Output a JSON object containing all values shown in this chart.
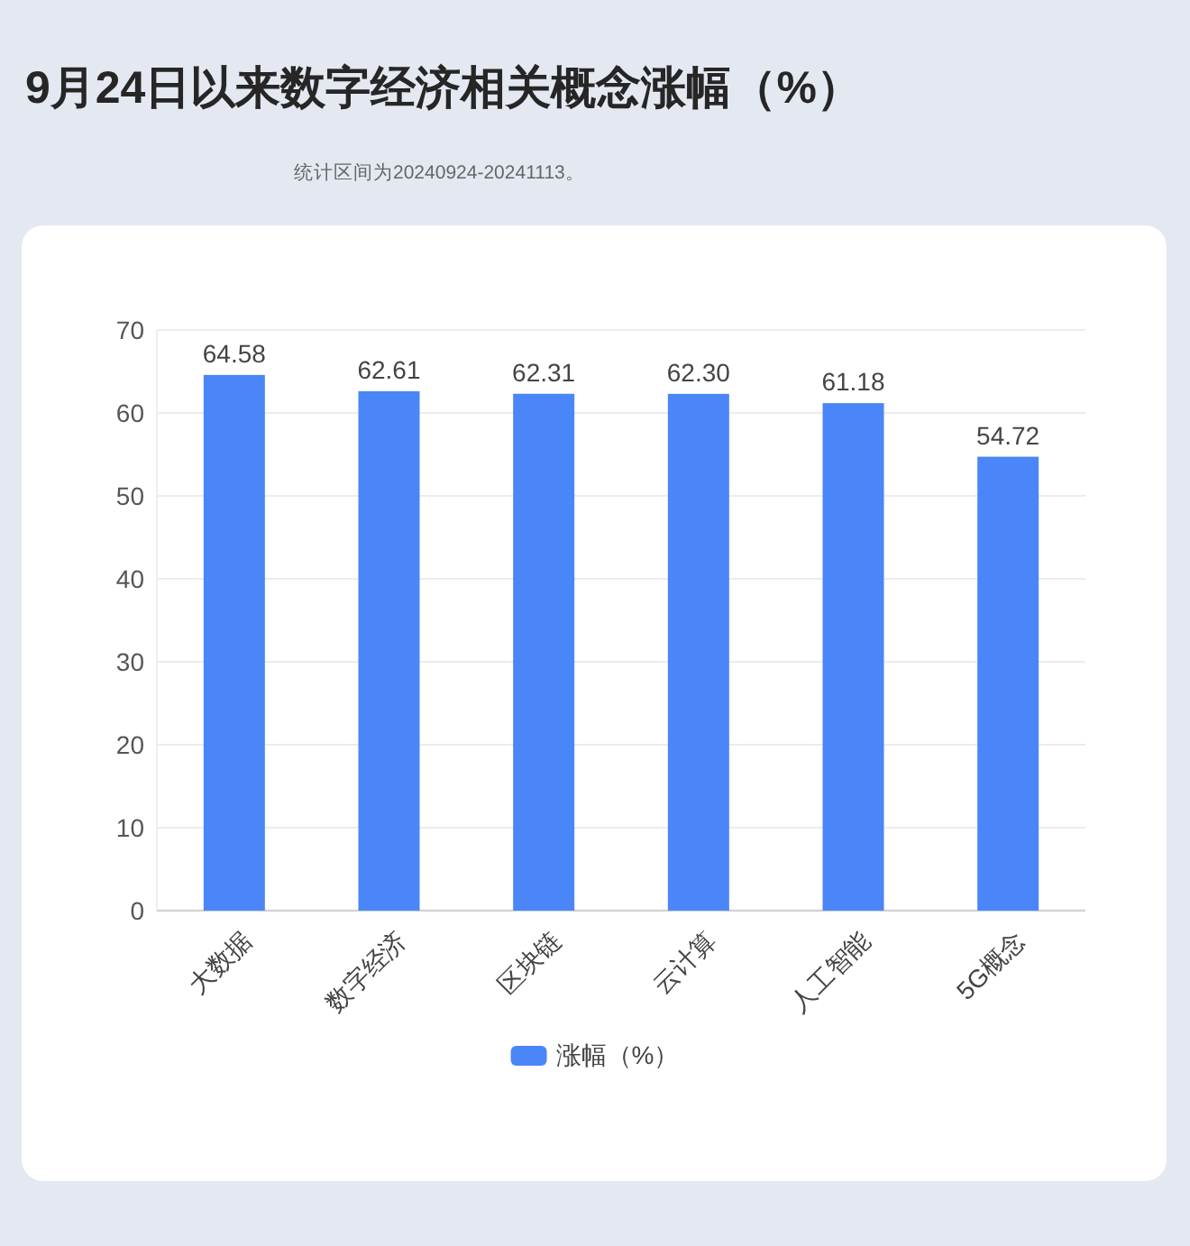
{
  "chart_data": {
    "type": "bar",
    "title": "9月24日以来数字经济相关概念涨幅（%）",
    "annotations": [
      "统计区间为20240924-20241113。"
    ],
    "categories": [
      "大数据",
      "数字经济",
      "区块链",
      "云计算",
      "人工智能",
      "5G概念"
    ],
    "series": [
      {
        "name": "涨幅（%）",
        "color": "#4a86f8",
        "values": [
          64.58,
          62.61,
          62.31,
          62.3,
          61.18,
          54.72
        ],
        "value_labels": [
          "64.58",
          "62.61",
          "62.31",
          "62.30",
          "61.18",
          "54.72"
        ]
      }
    ],
    "ylim": [
      0,
      70
    ],
    "yticks": [
      0,
      10,
      20,
      30,
      40,
      50,
      60,
      70
    ],
    "grid": "y",
    "legend": "bottom"
  }
}
